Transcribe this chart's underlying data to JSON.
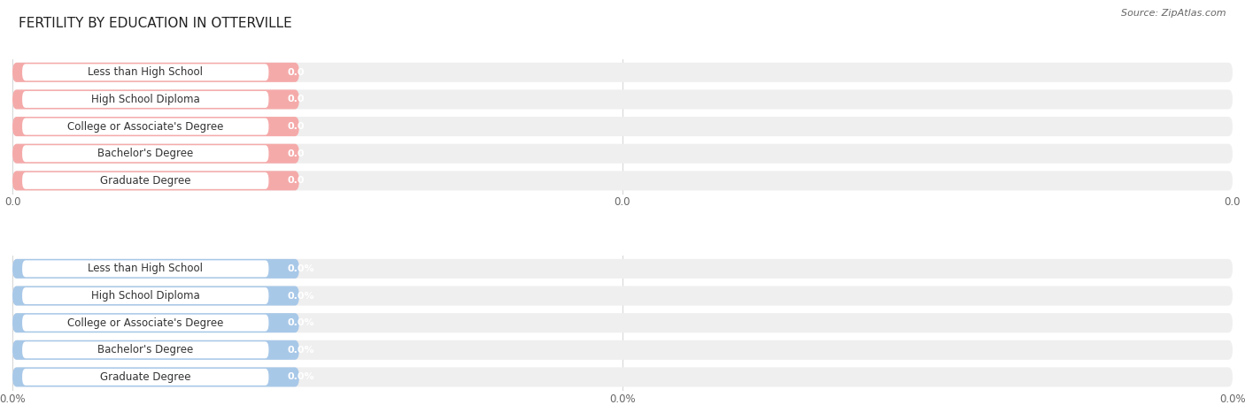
{
  "title": "FERTILITY BY EDUCATION IN OTTERVILLE",
  "source": "Source: ZipAtlas.com",
  "categories": [
    "Less than High School",
    "High School Diploma",
    "College or Associate's Degree",
    "Bachelor's Degree",
    "Graduate Degree"
  ],
  "top_values": [
    0.0,
    0.0,
    0.0,
    0.0,
    0.0
  ],
  "bottom_values": [
    0.0,
    0.0,
    0.0,
    0.0,
    0.0
  ],
  "top_bar_color": "#F5AAAA",
  "top_bar_bg": "#EFEFEF",
  "top_label_bg": "#FFFFFF",
  "bottom_bar_color": "#A8C8E8",
  "bottom_bar_bg": "#EFEFEF",
  "bottom_label_bg": "#FFFFFF",
  "top_tick_labels": [
    "0.0",
    "0.0",
    "0.0"
  ],
  "bottom_tick_labels": [
    "0.0%",
    "0.0%",
    "0.0%"
  ],
  "background_color": "#FFFFFF",
  "title_fontsize": 11,
  "label_fontsize": 8.5,
  "value_fontsize": 8,
  "tick_fontsize": 8.5,
  "source_fontsize": 8
}
